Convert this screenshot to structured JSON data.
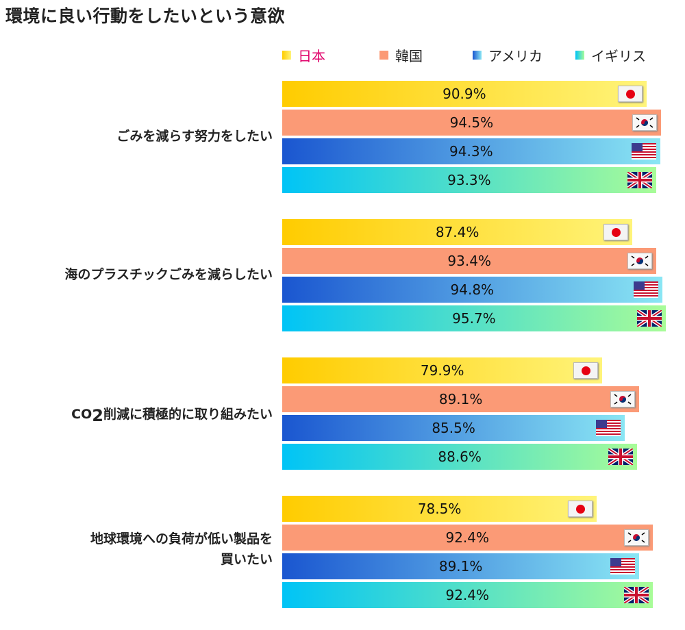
{
  "title": "環境に良い行動をしたいという意欲",
  "colors": {
    "japan": [
      "#ffcc00",
      "#fff47a"
    ],
    "korea": [
      "#fb9a76",
      "#fb9a76"
    ],
    "usa": [
      "#1a56d0",
      "#8ae6f4"
    ],
    "uk": [
      "#00c4f6",
      "#a8fc98"
    ],
    "japan_label": "#e0006a"
  },
  "chart_data": {
    "type": "bar",
    "orientation": "horizontal",
    "title": "環境に良い行動をしたいという意欲",
    "legend": [
      "日本",
      "韓国",
      "アメリカ",
      "イギリス"
    ],
    "legend_placement": "top",
    "xlim": [
      0,
      100
    ],
    "grid": false,
    "categories": [
      "ごみを減らす努力をしたい",
      "海のプラスチックごみを減らしたい",
      "CO₂削減に積極的に取り組みたい",
      "地球環境への負荷が低い製品を買いたい"
    ],
    "series": [
      {
        "name": "日本",
        "flag": "japan-flag",
        "values": [
          90.9,
          87.4,
          79.9,
          78.5
        ],
        "labels": [
          "90.9%",
          "87.4%",
          "79.9%",
          "78.5%"
        ]
      },
      {
        "name": "韓国",
        "flag": "korea-flag",
        "values": [
          94.5,
          93.4,
          89.1,
          92.4
        ],
        "labels": [
          "94.5%",
          "93.4%",
          "89.1%",
          "92.4%"
        ]
      },
      {
        "name": "アメリカ",
        "flag": "usa-flag",
        "values": [
          94.3,
          94.8,
          85.5,
          89.1
        ],
        "labels": [
          "94.3%",
          "94.8%",
          "85.5%",
          "89.1%"
        ]
      },
      {
        "name": "イギリス",
        "flag": "uk-flag",
        "values": [
          93.3,
          95.7,
          88.6,
          92.4
        ],
        "labels": [
          "93.3%",
          "95.7%",
          "88.6%",
          "92.4%"
        ]
      }
    ]
  }
}
